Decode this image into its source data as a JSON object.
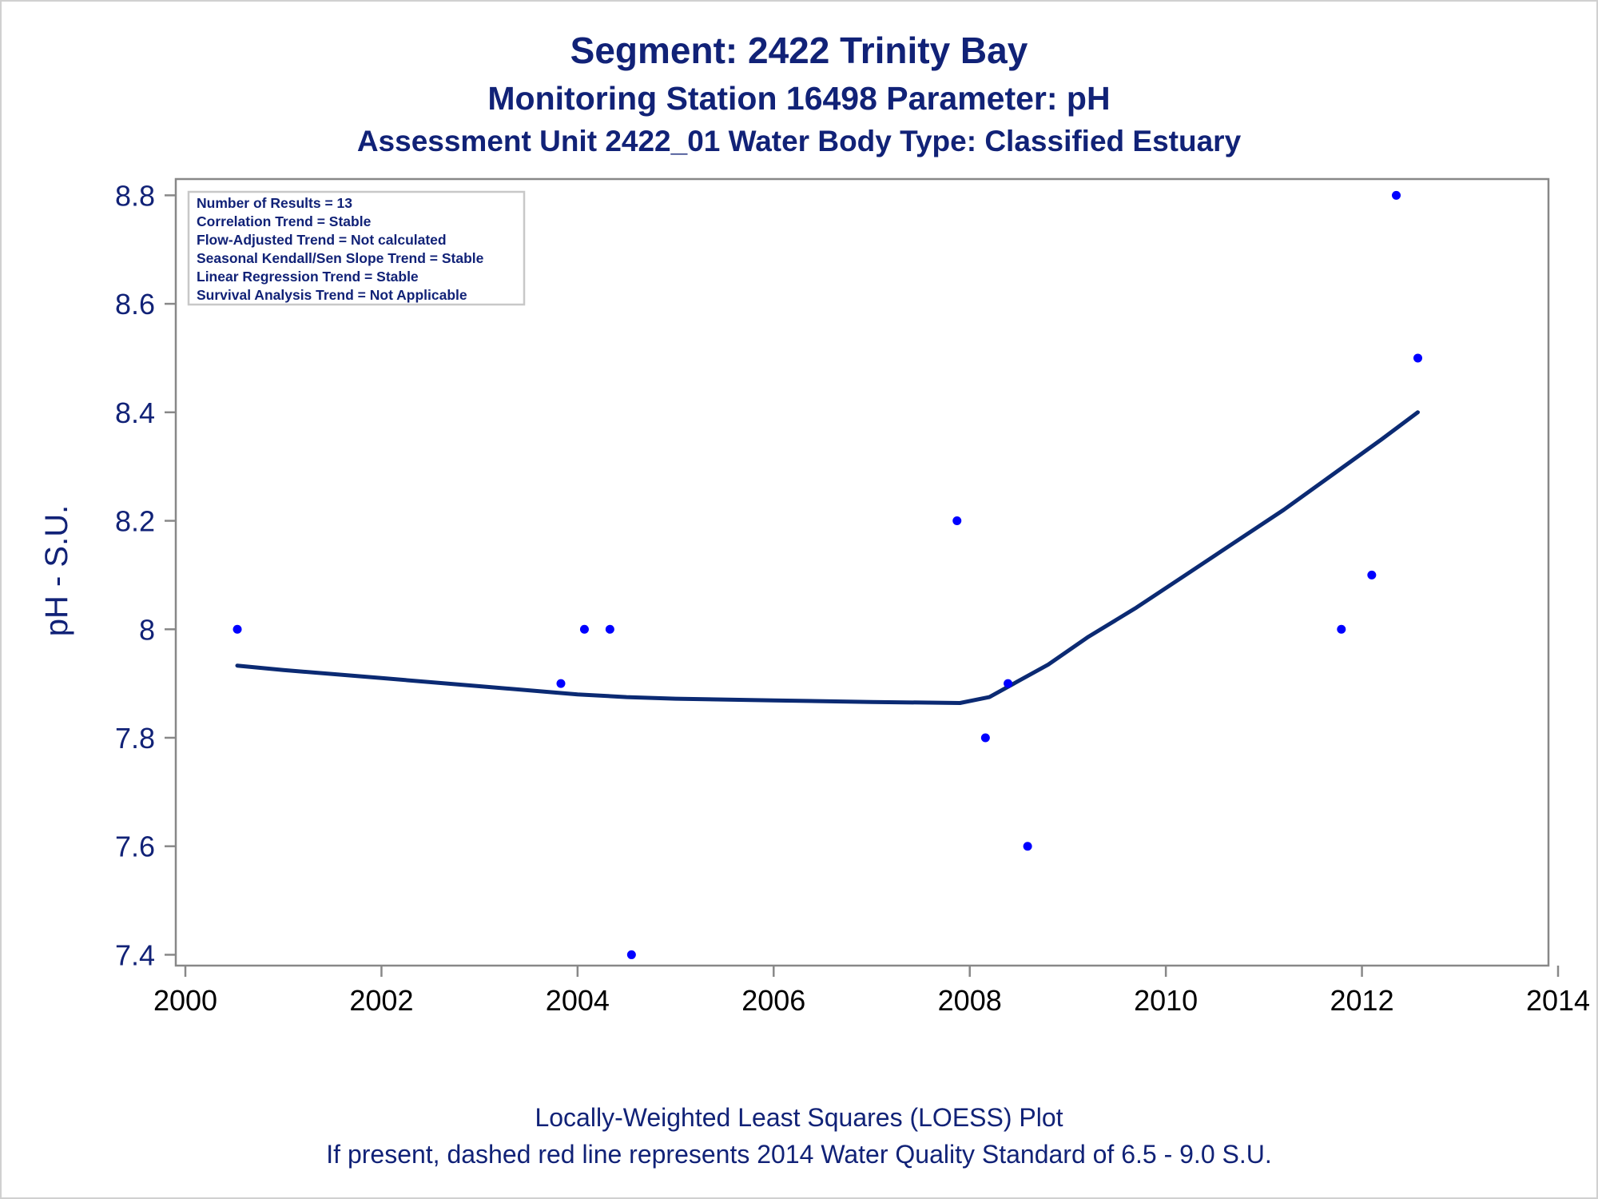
{
  "titles": {
    "line1": "Segment: 2422  Trinity Bay",
    "line2": "Monitoring Station 16498 Parameter: pH",
    "line3": "Assessment Unit 2422_01   Water Body Type: Classified Estuary"
  },
  "footnotes": {
    "line1": "Locally-Weighted Least Squares (LOESS) Plot",
    "line2": "If present, dashed red line represents 2014 Water Quality Standard of 6.5 - 9.0 S.U."
  },
  "info_box": [
    "Number of Results = 13",
    "Correlation Trend = Stable",
    "Flow-Adjusted Trend = Not calculated",
    "Seasonal Kendall/Sen Slope Trend = Stable",
    "Linear Regression Trend = Stable",
    "Survival Analysis Trend = Not Applicable"
  ],
  "colors": {
    "text": "#112277",
    "points": "#0000ff",
    "loess": "#0b2a73",
    "axis": "#888888"
  },
  "chart_data": {
    "type": "scatter",
    "title": "Segment: 2422  Trinity Bay",
    "xlabel": "",
    "ylabel": "pH - S.U.",
    "xlim": [
      2000,
      2014
    ],
    "ylim": [
      7.38,
      8.83
    ],
    "xticks": [
      2000,
      2002,
      2004,
      2006,
      2008,
      2010,
      2012,
      2014
    ],
    "yticks": [
      7.4,
      7.6,
      7.8,
      8.0,
      8.2,
      8.4,
      8.6,
      8.8
    ],
    "ytick_labels": [
      "7.4",
      "7.6",
      "7.8",
      "8",
      "8.2",
      "8.4",
      "8.6",
      "8.8"
    ],
    "grid": false,
    "legend": "none",
    "series": [
      {
        "type": "scatter",
        "x": [
          2000.53,
          2003.83,
          2004.07,
          2004.33,
          2004.55,
          2007.87,
          2008.16,
          2008.39,
          2008.59,
          2011.79,
          2012.1,
          2012.35,
          2012.57
        ],
        "y": [
          8.0,
          7.9,
          8.0,
          8.0,
          7.4,
          8.2,
          7.8,
          7.9,
          7.6,
          8.0,
          8.1,
          8.8,
          8.5
        ]
      },
      {
        "type": "line",
        "x": [
          2000.53,
          2001.0,
          2002.0,
          2003.0,
          2004.0,
          2004.5,
          2005.0,
          2006.0,
          2007.0,
          2007.9,
          2008.2,
          2008.5,
          2008.8,
          2009.2,
          2009.7,
          2010.2,
          2010.7,
          2011.2,
          2011.7,
          2012.2,
          2012.57
        ],
        "y": [
          7.933,
          7.925,
          7.91,
          7.895,
          7.88,
          7.875,
          7.872,
          7.869,
          7.866,
          7.864,
          7.875,
          7.905,
          7.935,
          7.985,
          8.04,
          8.1,
          8.16,
          8.22,
          8.285,
          8.35,
          8.4
        ]
      }
    ]
  }
}
